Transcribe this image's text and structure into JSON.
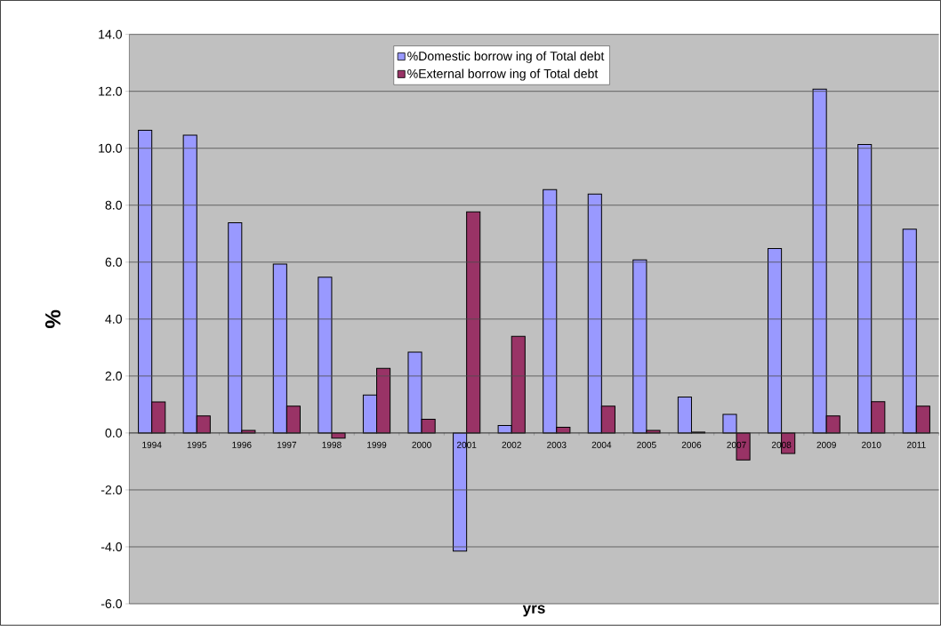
{
  "chart_data": {
    "type": "bar",
    "xlabel": "yrs",
    "ylabel": "%",
    "categories": [
      "1994",
      "1995",
      "1996",
      "1997",
      "1998",
      "1999",
      "2000",
      "2001",
      "2002",
      "2003",
      "2004",
      "2005",
      "2006",
      "2007",
      "2008",
      "2009",
      "2010",
      "2011"
    ],
    "series": [
      {
        "name": "%Domestic borrow ing of Total debt",
        "color": "#9999ff",
        "values": [
          10.63,
          10.46,
          7.38,
          5.93,
          5.47,
          1.33,
          2.84,
          -4.15,
          0.26,
          8.55,
          8.39,
          6.08,
          1.26,
          0.65,
          6.48,
          12.08,
          10.13,
          7.16
        ]
      },
      {
        "name": "%External borrow ing of Total debt",
        "color": "#993366",
        "values": [
          1.09,
          0.6,
          0.09,
          0.94,
          -0.18,
          2.27,
          0.48,
          7.77,
          3.39,
          0.2,
          0.94,
          0.09,
          0.03,
          -0.95,
          -0.72,
          0.6,
          1.1,
          0.94
        ]
      }
    ],
    "ylim": [
      -6,
      14
    ],
    "yticks": [
      {
        "value": -6,
        "label": "-6.0"
      },
      {
        "value": -4,
        "label": "-4.0"
      },
      {
        "value": -2,
        "label": "-2.0"
      },
      {
        "value": 0,
        "label": "0.0"
      },
      {
        "value": 2,
        "label": "2.0"
      },
      {
        "value": 4,
        "label": "4.0"
      },
      {
        "value": 6,
        "label": "6.0"
      },
      {
        "value": 8,
        "label": "8.0"
      },
      {
        "value": 10,
        "label": "10.0"
      },
      {
        "value": 12,
        "label": "12.0"
      },
      {
        "value": 14,
        "label": "14.0"
      }
    ],
    "grid": "y",
    "legend": "top"
  }
}
